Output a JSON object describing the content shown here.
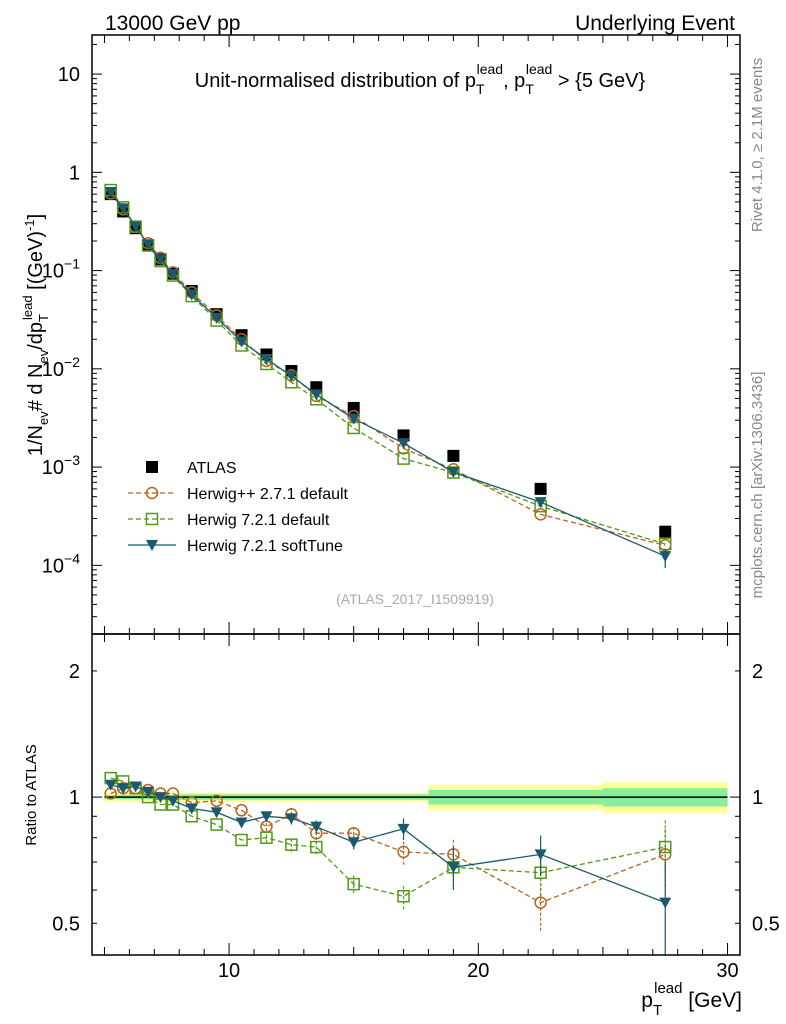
{
  "header": {
    "left": "13000 GeV pp",
    "right": "Underlying Event"
  },
  "side_labels": {
    "rivet": "Rivet 4.1.0, ≥ 2.1M events",
    "mcplots": "mcplots.cern.ch [arXiv:1306.3436]"
  },
  "colors": {
    "atlas": "#000000",
    "herwigpp": "#b5651d",
    "herwig721": "#4f9a16",
    "softtune": "#1b5a6e",
    "band_outer": "#ffff99",
    "band_inner": "#88ee99"
  },
  "chart_data": [
    {
      "type": "scatter",
      "panel": "main",
      "title": {
        "prefix": "Unit-normalised distribution of p",
        "sub": "T",
        "sup": "lead",
        "mid": ", p",
        "suffix": " > {5 GeV}"
      },
      "ylabel": "1/N_ev # d N_ev/dp_T^lead [(GeV)^-1]",
      "ylabel_parts": {
        "a": "1/N",
        "a_sub": "ev",
        "b": "# d N",
        "b_sub": "ev",
        "c": "/dp",
        "c_sub": "T",
        "c_sup": "lead",
        "d": " [(GeV)",
        "d_sup": "-1",
        "e": "]"
      },
      "yscale": "log",
      "ylim": [
        2e-05,
        25
      ],
      "xlim": [
        4.5,
        30.5
      ],
      "yticks": [
        {
          "v": 10,
          "label": "10"
        },
        {
          "v": 1,
          "label": "1"
        },
        {
          "v": 0.1,
          "base": "10",
          "exp": "−1"
        },
        {
          "v": 0.01,
          "base": "10",
          "exp": "−2"
        },
        {
          "v": 0.001,
          "base": "10",
          "exp": "−3"
        },
        {
          "v": 0.0001,
          "base": "10",
          "exp": "−4"
        }
      ],
      "annotation": "(ATLAS_2017_I1509919)",
      "legend_position": "bottom-left",
      "series": [
        {
          "name": "ATLAS",
          "style": "data",
          "x": [
            5.25,
            5.75,
            6.25,
            6.75,
            7.25,
            7.75,
            8.5,
            9.5,
            10.5,
            11.5,
            12.5,
            13.5,
            15,
            17,
            19,
            22.5,
            27.5
          ],
          "y": [
            0.6,
            0.4,
            0.27,
            0.18,
            0.13,
            0.093,
            0.062,
            0.036,
            0.022,
            0.014,
            0.0095,
            0.0065,
            0.004,
            0.0021,
            0.0013,
            0.0006,
            0.00022
          ]
        },
        {
          "name": "Herwig++ 2.7.1 default",
          "style": "dashed-circle",
          "x": [
            5.25,
            5.75,
            6.25,
            6.75,
            7.25,
            7.75,
            8.5,
            9.5,
            10.5,
            11.5,
            12.5,
            13.5,
            15,
            17,
            19,
            22.5,
            27.5
          ],
          "y": [
            0.61,
            0.42,
            0.28,
            0.19,
            0.135,
            0.096,
            0.06,
            0.035,
            0.02,
            0.012,
            0.0086,
            0.0053,
            0.0033,
            0.00155,
            0.00095,
            0.00033,
            0.00016
          ]
        },
        {
          "name": "Herwig 7.2.1 default",
          "style": "dashed-square",
          "x": [
            5.25,
            5.75,
            6.25,
            6.75,
            7.25,
            7.75,
            8.5,
            9.5,
            10.5,
            11.5,
            12.5,
            13.5,
            15,
            17,
            19,
            22.5,
            27.5
          ],
          "y": [
            0.66,
            0.44,
            0.28,
            0.18,
            0.125,
            0.089,
            0.055,
            0.031,
            0.0173,
            0.0112,
            0.0073,
            0.0049,
            0.0025,
            0.00122,
            0.00088,
            0.0004,
            0.000165
          ]
        },
        {
          "name": "Herwig 7.2.1 softTune",
          "style": "solid-triangle",
          "x": [
            5.25,
            5.75,
            6.25,
            6.75,
            7.25,
            7.75,
            8.5,
            9.5,
            10.5,
            11.5,
            12.5,
            13.5,
            15,
            17,
            19,
            22.5,
            27.5
          ],
          "y": [
            0.63,
            0.43,
            0.28,
            0.185,
            0.13,
            0.091,
            0.057,
            0.033,
            0.019,
            0.0126,
            0.0085,
            0.0055,
            0.0031,
            0.00175,
            0.00089,
            0.00044,
            0.000124
          ],
          "yerr_low": [
            0,
            0,
            0,
            0,
            0,
            0,
            0,
            0,
            0,
            0,
            0,
            0,
            0,
            0,
            0,
            0,
            3e-05
          ],
          "yerr_high": [
            0,
            0,
            0,
            0,
            0,
            0,
            0,
            0,
            0,
            0,
            0,
            0,
            0,
            0,
            0,
            0,
            2e-05
          ]
        }
      ]
    },
    {
      "type": "scatter",
      "panel": "ratio",
      "ylabel": "Ratio to ATLAS",
      "xlabel": "p_T^lead [GeV]",
      "xlabel_parts": {
        "a": "p",
        "sub": "T",
        "sup": "lead",
        "unit": " [GeV]"
      },
      "yscale": "log",
      "ylim": [
        0.42,
        2.45
      ],
      "xlim": [
        4.5,
        30.5
      ],
      "yticks": [
        {
          "v": 2,
          "label": "2"
        },
        {
          "v": 1,
          "label": "1"
        },
        {
          "v": 0.5,
          "label": "0.5"
        }
      ],
      "xticks": [
        {
          "v": 10,
          "label": "10"
        },
        {
          "v": 20,
          "label": "20"
        },
        {
          "v": 30,
          "label": "30"
        }
      ],
      "uncertainty_band": {
        "edges": [
          5,
          8,
          18,
          25,
          30
        ],
        "outer": [
          0.025,
          0.025,
          0.07,
          0.085
        ],
        "inner": [
          0.012,
          0.015,
          0.04,
          0.05
        ]
      },
      "series": [
        {
          "name": "Herwig++ 2.7.1 default",
          "style": "dashed-circle",
          "x": [
            5.25,
            5.75,
            6.25,
            6.75,
            7.25,
            7.75,
            8.5,
            9.5,
            10.5,
            11.5,
            12.5,
            13.5,
            15,
            17,
            19,
            22.5,
            27.5
          ],
          "y": [
            1.02,
            1.05,
            1.05,
            1.04,
            1.02,
            1.02,
            0.97,
            0.98,
            0.93,
            0.85,
            0.91,
            0.82,
            0.82,
            0.74,
            0.73,
            0.56,
            0.73
          ],
          "err": [
            0.01,
            0.01,
            0.01,
            0.01,
            0.01,
            0.01,
            0.01,
            0.01,
            0.015,
            0.02,
            0.03,
            0.03,
            0.03,
            0.05,
            0.07,
            0.08,
            0.12
          ]
        },
        {
          "name": "Herwig 7.2.1 default",
          "style": "dashed-square",
          "x": [
            5.25,
            5.75,
            6.25,
            6.75,
            7.25,
            7.75,
            8.5,
            9.5,
            10.5,
            11.5,
            12.5,
            13.5,
            15,
            17,
            19,
            22.5,
            27.5
          ],
          "y": [
            1.11,
            1.09,
            1.05,
            1.0,
            0.96,
            0.96,
            0.9,
            0.86,
            0.79,
            0.8,
            0.77,
            0.76,
            0.62,
            0.58,
            0.68,
            0.66,
            0.76
          ],
          "err": [
            0.01,
            0.01,
            0.01,
            0.01,
            0.01,
            0.01,
            0.01,
            0.01,
            0.015,
            0.02,
            0.03,
            0.03,
            0.03,
            0.04,
            0.07,
            0.08,
            0.12
          ]
        },
        {
          "name": "Herwig 7.2.1 softTune",
          "style": "solid-triangle",
          "x": [
            5.25,
            5.75,
            6.25,
            6.75,
            7.25,
            7.75,
            8.5,
            9.5,
            10.5,
            11.5,
            12.5,
            13.5,
            15,
            17,
            19,
            22.5,
            27.5
          ],
          "y": [
            1.07,
            1.05,
            1.06,
            1.03,
            1.0,
            0.98,
            0.94,
            0.92,
            0.87,
            0.9,
            0.89,
            0.85,
            0.78,
            0.84,
            0.68,
            0.73,
            0.56
          ],
          "err": [
            0.01,
            0.01,
            0.01,
            0.01,
            0.01,
            0.01,
            0.01,
            0.01,
            0.015,
            0.02,
            0.03,
            0.03,
            0.03,
            0.05,
            0.08,
            0.08,
            0.14
          ]
        }
      ]
    }
  ]
}
